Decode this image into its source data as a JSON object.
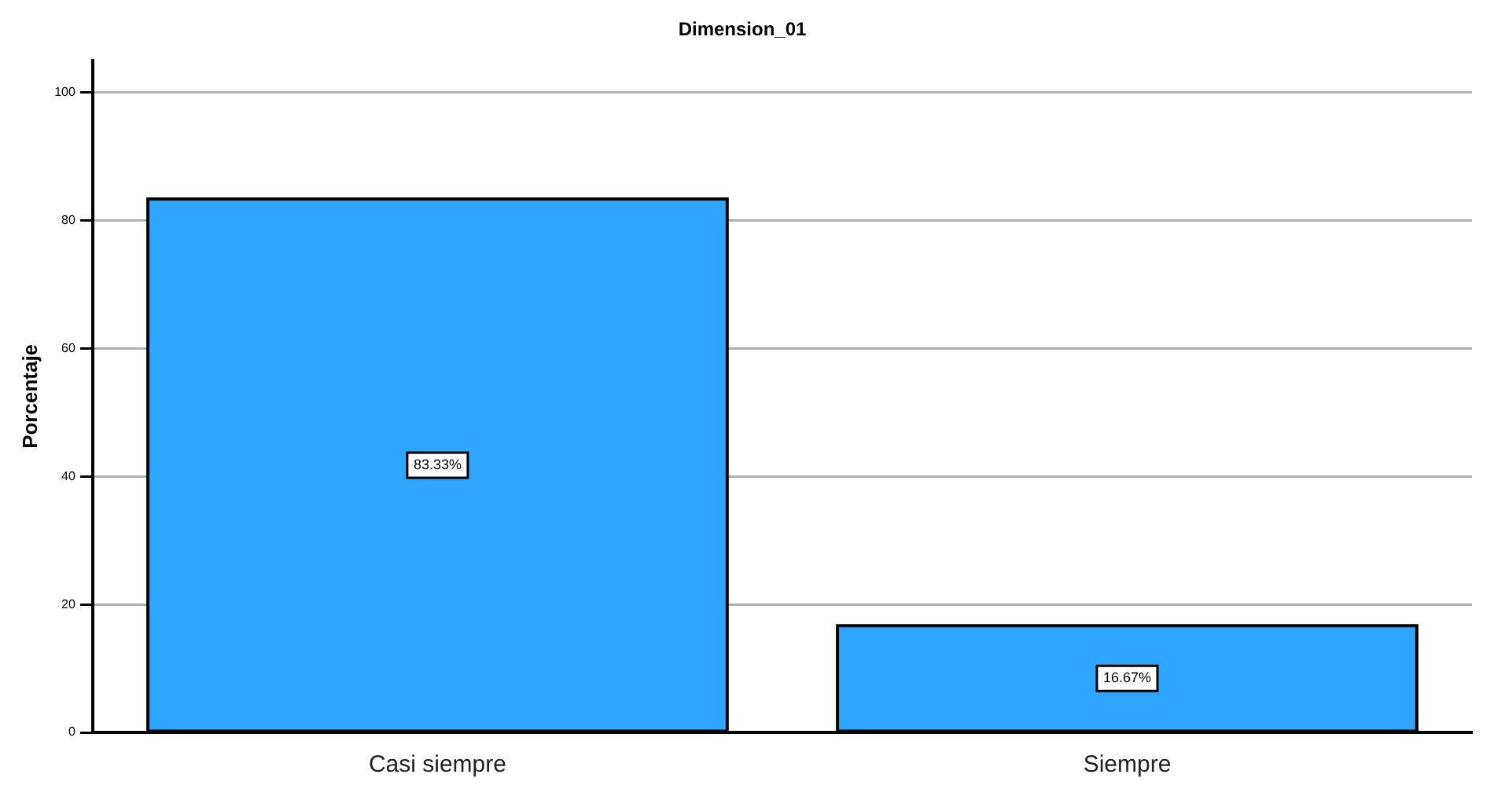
{
  "chart_data": {
    "type": "bar",
    "title": "Dimension_01",
    "ylabel": "Porcentaje",
    "categories": [
      "Casi siempre",
      "Siempre"
    ],
    "values": [
      83.33,
      16.67
    ],
    "value_labels": [
      "83.33%",
      "16.67%"
    ],
    "color": "#2ea6ff",
    "ylim": [
      0,
      105
    ],
    "yticks": [
      0,
      20,
      40,
      60,
      80,
      100
    ],
    "grid": "y",
    "legend": false
  }
}
